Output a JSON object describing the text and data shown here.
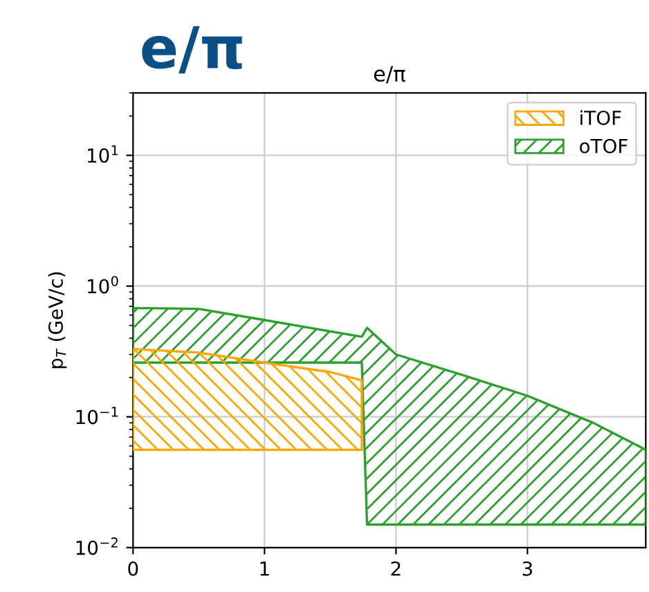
{
  "chart_data": {
    "type": "area",
    "title": "e/π",
    "ylabel": "p$_{T}$ (GeV/c)",
    "annotations": [
      "e/π"
    ],
    "series": [
      {
        "name": "iTOF",
        "color": "#ffa500",
        "x": [
          0,
          0.5,
          1,
          1.5,
          1.74
        ],
        "values": [
          0.33,
          0.31,
          0.26,
          0.22,
          0.19
        ]
      },
      {
        "type": "line",
        "color": "#ffa500",
        "x": [
          0,
          0.5,
          1,
          1.5,
          1.74
        ],
        "values": [
          0.056,
          0.056,
          0.056,
          0.056,
          0.056
        ]
      },
      {
        "name": "oTOF",
        "color": "#2ca02c",
        "x": [
          0,
          0.5,
          1,
          1.5,
          1.74,
          1.78,
          2,
          2.5,
          3,
          3.5,
          3.9
        ],
        "values": [
          0.68,
          0.67,
          0.55,
          0.45,
          0.41,
          0.48,
          0.3,
          0.21,
          0.145,
          0.09,
          0.056
        ]
      },
      {
        "type": "line",
        "color": "#2ca02c",
        "x": [
          0,
          0.5,
          1,
          1.5,
          1.74,
          1.78,
          2,
          2.5,
          3,
          3.5,
          3.9
        ],
        "values": [
          0.26,
          0.26,
          0.26,
          0.26,
          0.26,
          0.015,
          0.015,
          0.015,
          0.015,
          0.015,
          0.015
        ]
      }
    ],
    "log": "y",
    "xlim": [
      0,
      3.9
    ],
    "ylim": [
      0.01,
      30
    ],
    "xticks": [
      0,
      1,
      2,
      3
    ],
    "yticks": [
      {
        "value": 0.01,
        "label": "10$^{−2}$"
      },
      {
        "value": 0.1,
        "label": "10$^{−1}$"
      },
      {
        "value": 1,
        "label": "10$^{0}$"
      },
      {
        "value": 10,
        "label": "10$^{1}$"
      }
    ],
    "grid": true,
    "legend": "top right"
  }
}
